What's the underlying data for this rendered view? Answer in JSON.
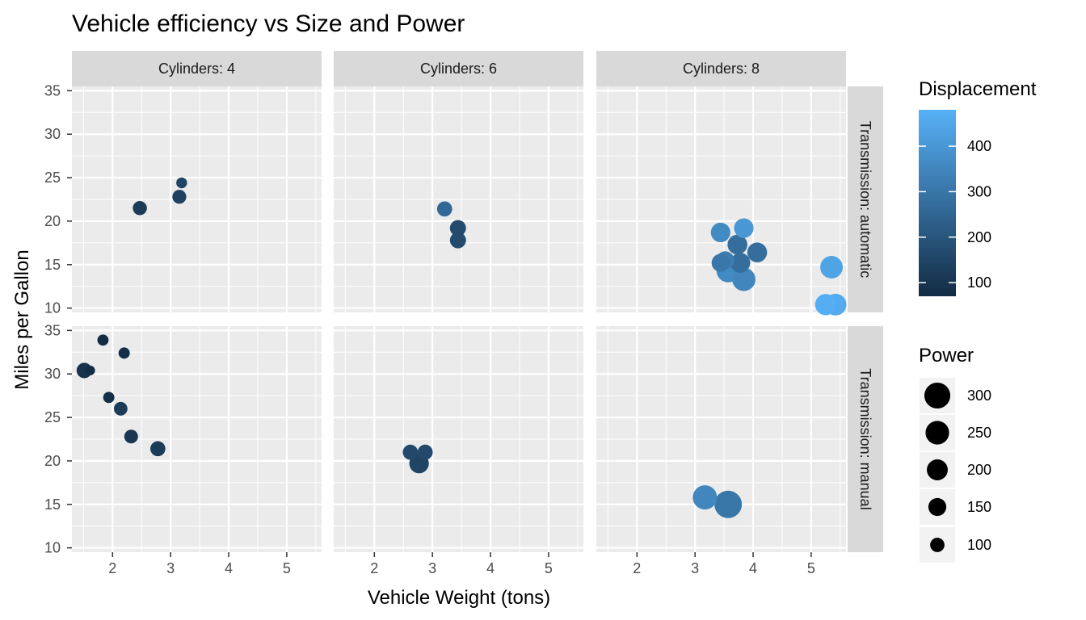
{
  "chart_data": {
    "type": "scatter",
    "title": "Vehicle efficiency vs Size and Power",
    "xlabel": "Vehicle Weight (tons)",
    "ylabel": "Miles per Gallon",
    "xlim": [
      1.3,
      5.6
    ],
    "ylim": [
      9.5,
      35.5
    ],
    "x_ticks": [
      2,
      3,
      4,
      5
    ],
    "y_ticks": [
      10,
      15,
      20,
      25,
      30,
      35
    ],
    "grid": true,
    "facet_cols": [
      "Cylinders: 4",
      "Cylinders: 6",
      "Cylinders: 8"
    ],
    "facet_rows": [
      "Transmission: automatic",
      "Transmission: manual"
    ],
    "legend_placement": "right",
    "color_legend": {
      "title": "Displacement",
      "range": [
        70,
        480
      ],
      "ticks": [
        100,
        200,
        300,
        400
      ],
      "low_color": "#132B43",
      "high_color": "#56B1F7"
    },
    "size_legend": {
      "title": "Power",
      "range": [
        52,
        335
      ],
      "ticks": [
        300,
        250,
        200,
        150,
        100
      ]
    },
    "points": [
      {
        "row": 0,
        "col": 0,
        "x": 3.19,
        "y": 24.4,
        "disp": 147,
        "hp": 62
      },
      {
        "row": 0,
        "col": 0,
        "x": 3.15,
        "y": 22.8,
        "disp": 141,
        "hp": 95
      },
      {
        "row": 0,
        "col": 0,
        "x": 2.47,
        "y": 21.5,
        "disp": 120,
        "hp": 97
      },
      {
        "row": 0,
        "col": 1,
        "x": 3.21,
        "y": 21.4,
        "disp": 258,
        "hp": 110
      },
      {
        "row": 0,
        "col": 1,
        "x": 3.44,
        "y": 19.2,
        "disp": 168,
        "hp": 123
      },
      {
        "row": 0,
        "col": 1,
        "x": 3.44,
        "y": 17.8,
        "disp": 168,
        "hp": 123
      },
      {
        "row": 0,
        "col": 2,
        "x": 3.44,
        "y": 18.7,
        "disp": 360,
        "hp": 175
      },
      {
        "row": 0,
        "col": 2,
        "x": 3.84,
        "y": 19.2,
        "disp": 400,
        "hp": 175
      },
      {
        "row": 0,
        "col": 2,
        "x": 3.57,
        "y": 14.3,
        "disp": 360,
        "hp": 245
      },
      {
        "row": 0,
        "col": 2,
        "x": 4.07,
        "y": 16.4,
        "disp": 276,
        "hp": 180
      },
      {
        "row": 0,
        "col": 2,
        "x": 3.73,
        "y": 17.3,
        "disp": 276,
        "hp": 180
      },
      {
        "row": 0,
        "col": 2,
        "x": 3.78,
        "y": 15.2,
        "disp": 276,
        "hp": 180
      },
      {
        "row": 0,
        "col": 2,
        "x": 3.52,
        "y": 15.5,
        "disp": 318,
        "hp": 150
      },
      {
        "row": 0,
        "col": 2,
        "x": 3.44,
        "y": 15.2,
        "disp": 304,
        "hp": 150
      },
      {
        "row": 0,
        "col": 2,
        "x": 3.84,
        "y": 13.3,
        "disp": 350,
        "hp": 245
      },
      {
        "row": 0,
        "col": 2,
        "x": 5.25,
        "y": 10.4,
        "disp": 472,
        "hp": 205
      },
      {
        "row": 0,
        "col": 2,
        "x": 5.42,
        "y": 10.4,
        "disp": 460,
        "hp": 215
      },
      {
        "row": 0,
        "col": 2,
        "x": 5.35,
        "y": 14.7,
        "disp": 440,
        "hp": 230
      },
      {
        "row": 1,
        "col": 0,
        "x": 2.32,
        "y": 22.8,
        "disp": 108,
        "hp": 93
      },
      {
        "row": 1,
        "col": 0,
        "x": 2.2,
        "y": 32.4,
        "disp": 79,
        "hp": 66
      },
      {
        "row": 1,
        "col": 0,
        "x": 1.615,
        "y": 30.4,
        "disp": 76,
        "hp": 52
      },
      {
        "row": 1,
        "col": 0,
        "x": 1.835,
        "y": 33.9,
        "disp": 71,
        "hp": 65
      },
      {
        "row": 1,
        "col": 0,
        "x": 1.935,
        "y": 27.3,
        "disp": 79,
        "hp": 66
      },
      {
        "row": 1,
        "col": 0,
        "x": 2.14,
        "y": 26.0,
        "disp": 120,
        "hp": 91
      },
      {
        "row": 1,
        "col": 0,
        "x": 1.513,
        "y": 30.4,
        "disp": 95,
        "hp": 113
      },
      {
        "row": 1,
        "col": 0,
        "x": 2.78,
        "y": 21.4,
        "disp": 121,
        "hp": 109
      },
      {
        "row": 1,
        "col": 1,
        "x": 2.62,
        "y": 21.0,
        "disp": 160,
        "hp": 110
      },
      {
        "row": 1,
        "col": 1,
        "x": 2.875,
        "y": 21.0,
        "disp": 160,
        "hp": 110
      },
      {
        "row": 1,
        "col": 1,
        "x": 2.77,
        "y": 19.7,
        "disp": 145,
        "hp": 175
      },
      {
        "row": 1,
        "col": 2,
        "x": 3.17,
        "y": 15.8,
        "disp": 351,
        "hp": 264
      },
      {
        "row": 1,
        "col": 2,
        "x": 3.57,
        "y": 15.0,
        "disp": 301,
        "hp": 335
      }
    ]
  }
}
